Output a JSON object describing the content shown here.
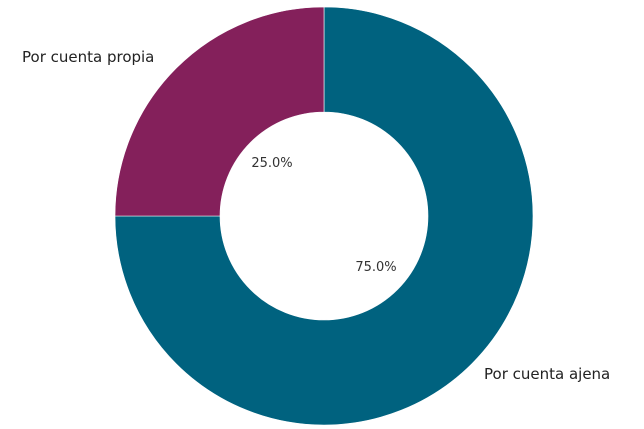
{
  "chart_data": {
    "type": "pie",
    "donut": true,
    "categories": [
      "Por cuenta ajena",
      "Por cuenta propia"
    ],
    "values": [
      75.0,
      25.0
    ],
    "value_labels": [
      "75.0%",
      "25.0%"
    ],
    "colors": [
      "#00627f",
      "#84205b"
    ],
    "legend": "none"
  }
}
